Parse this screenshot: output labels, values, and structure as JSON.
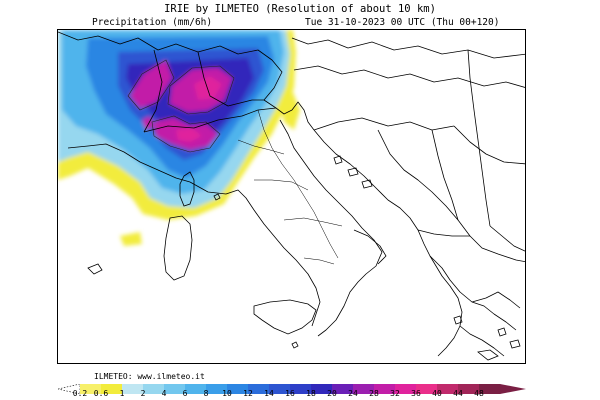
{
  "header": {
    "title": "IRIE by ILMETEO (Resolution of about 10 km)",
    "variable": "Precipitation (mm/6h)",
    "valid_time": "Tue 31-10-2023 00 UTC (Thu 00+120)"
  },
  "footer": {
    "watermark": "ILMETEO: www.ilmeteo.it"
  },
  "legend": {
    "ticks": [
      "0.2",
      "0.6",
      "1",
      "2",
      "4",
      "6",
      "8",
      "10",
      "12",
      "14",
      "16",
      "18",
      "20",
      "24",
      "28",
      "32",
      "36",
      "40",
      "44",
      "48"
    ],
    "colors": [
      "#f7f06a",
      "#f2ec3c",
      "#bfe6f2",
      "#96d7ef",
      "#72c7ee",
      "#50b4ec",
      "#3a9ee9",
      "#2c86e3",
      "#2b6ddb",
      "#2d55d1",
      "#2e3fc8",
      "#3128bb",
      "#6a1fb7",
      "#9b1fb0",
      "#c21ea8",
      "#e0239d",
      "#ea2f8a",
      "#c12a6c",
      "#a12558",
      "#7a1f44"
    ]
  },
  "colors": {
    "coastline": "#000000",
    "background": "#ffffff"
  }
}
